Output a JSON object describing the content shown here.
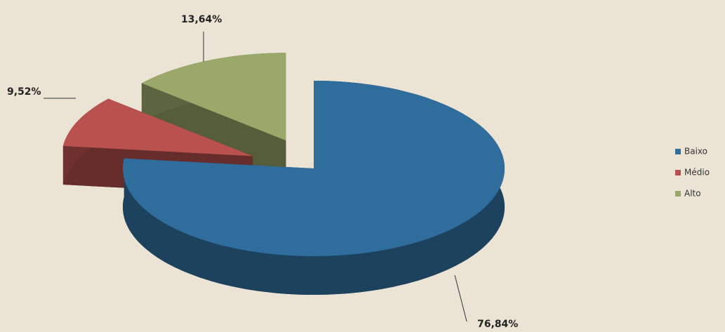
{
  "chart_data": {
    "type": "pie",
    "categories": [
      "Baixo",
      "Médio",
      "Alto"
    ],
    "values": [
      76.84,
      9.52,
      13.64
    ],
    "value_labels": [
      "76,84%",
      "9,52%",
      "13,64%"
    ],
    "colors": [
      "#2f6e9c",
      "#b9514e",
      "#9aa969"
    ],
    "legend": "right"
  }
}
